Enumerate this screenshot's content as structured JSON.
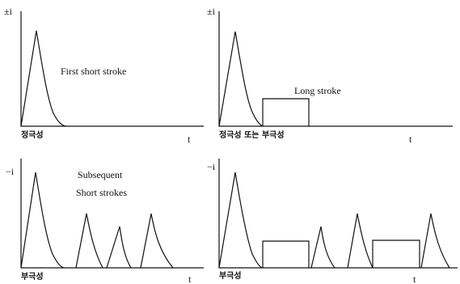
{
  "panels": {
    "top_left": {
      "ylabel": "±i",
      "xlabel": "t",
      "caption": "정극성",
      "annotation": "First short stroke"
    },
    "top_right": {
      "ylabel": "±i",
      "xlabel": "t",
      "caption": "정극성 또는 부극성",
      "annotation": "Long stroke"
    },
    "bottom_left": {
      "ylabel": "−i",
      "xlabel": "t",
      "caption": "부극성",
      "annotation_line1": "Subsequent",
      "annotation_line2": "Short strokes"
    },
    "bottom_right": {
      "ylabel": "−i",
      "xlabel": "t",
      "caption": "부극성"
    }
  },
  "colors": {
    "ink": "#111111",
    "background": "#ffffff"
  }
}
